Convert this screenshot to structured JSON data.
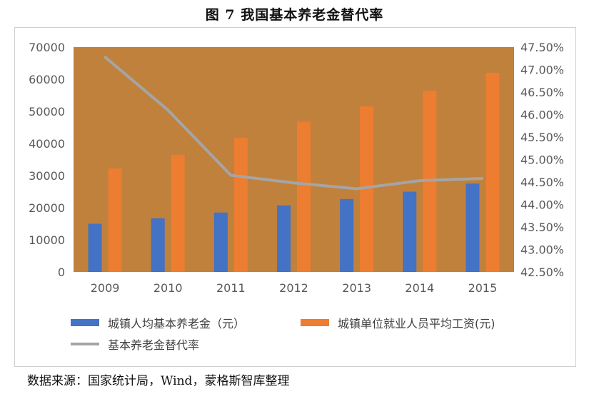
{
  "title": "图 7  我国基本养老金替代率",
  "source": "数据来源：国家统计局，Wind，蒙格斯智库整理",
  "colors": {
    "plot_bg": "#c0813c",
    "series_blue": "#4472c4",
    "series_orange": "#ed7d31",
    "series_line": "#a5a5a5"
  },
  "chart_data": {
    "type": "bar",
    "categories": [
      "2009",
      "2010",
      "2011",
      "2012",
      "2013",
      "2014",
      "2015"
    ],
    "series": [
      {
        "name": "城镇人均基本养老金（元）",
        "type": "bar",
        "axis": "left",
        "values": [
          15000,
          16700,
          18500,
          20700,
          22700,
          25000,
          27500
        ]
      },
      {
        "name": "城镇单位就业人员平均工资(元)",
        "type": "bar",
        "axis": "left",
        "values": [
          32200,
          36500,
          41800,
          46800,
          51500,
          56400,
          62000
        ]
      },
      {
        "name": "基本养老金替代率",
        "type": "line",
        "axis": "right",
        "values": [
          47.28,
          46.1,
          44.65,
          44.48,
          44.35,
          44.53,
          44.58
        ]
      }
    ],
    "left_axis": {
      "ylim": [
        0,
        70000
      ],
      "ticks": [
        "0",
        "10000",
        "20000",
        "30000",
        "40000",
        "50000",
        "60000",
        "70000"
      ]
    },
    "right_axis": {
      "ylim": [
        42.5,
        47.5
      ],
      "ticks": [
        "42.50%",
        "43.00%",
        "43.50%",
        "44.00%",
        "44.50%",
        "45.00%",
        "45.50%",
        "46.00%",
        "46.50%",
        "47.00%",
        "47.50%"
      ]
    },
    "legend_position": "bottom"
  }
}
